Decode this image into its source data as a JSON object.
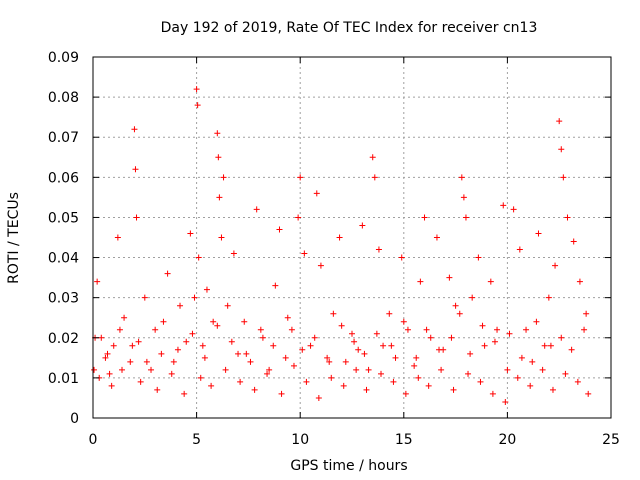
{
  "chart_data": {
    "type": "scatter",
    "title": "Day 192 of 2019, Rate Of TEC Index for receiver cn13",
    "xlabel": "GPS time / hours",
    "ylabel": "ROTI / TECUs",
    "xlim": [
      0,
      25
    ],
    "ylim": [
      0,
      0.09
    ],
    "xticks": [
      0,
      5,
      10,
      15,
      20,
      25
    ],
    "xtick_labels": [
      "0",
      "5",
      "10",
      "15",
      "20",
      "25"
    ],
    "yticks": [
      0,
      0.01,
      0.02,
      0.03,
      0.04,
      0.05,
      0.06,
      0.07,
      0.08,
      0.09
    ],
    "ytick_labels": [
      "0",
      "0.01",
      "0.02",
      "0.03",
      "0.04",
      "0.05",
      "0.06",
      "0.07",
      "0.08",
      "0.09"
    ],
    "grid": true,
    "marker": "+",
    "color": "#ff0000",
    "series": [
      {
        "x": [
          0.05,
          0.2,
          0.4,
          0.6,
          0.8,
          1.0,
          1.2,
          1.5,
          1.8,
          2.0,
          2.05,
          2.1,
          2.2,
          2.5,
          2.8,
          3.0,
          3.3,
          3.6,
          3.9,
          4.2,
          4.5,
          4.7,
          4.9,
          5.0,
          5.05,
          5.1,
          5.3,
          5.5,
          5.8,
          6.0,
          6.05,
          6.1,
          6.2,
          6.3,
          6.5,
          6.8,
          7.0,
          7.3,
          7.6,
          7.9,
          8.2,
          8.5,
          8.8,
          9.0,
          9.3,
          9.6,
          9.9,
          10.0,
          10.2,
          10.5,
          10.8,
          11.0,
          11.3,
          11.6,
          11.9,
          12.2,
          12.5,
          12.8,
          13.0,
          13.3,
          13.5,
          13.6,
          13.8,
          14.0,
          14.3,
          14.6,
          14.9,
          15.2,
          15.5,
          15.8,
          16.0,
          16.3,
          16.6,
          16.9,
          17.2,
          17.5,
          17.8,
          17.9,
          18.0,
          18.3,
          18.6,
          18.9,
          19.2,
          19.5,
          19.8,
          20.0,
          20.3,
          20.6,
          20.9,
          21.2,
          21.5,
          21.8,
          22.0,
          22.3,
          22.5,
          22.6,
          22.7,
          22.9,
          23.2,
          23.5,
          23.8,
          0.3,
          0.9,
          1.4,
          2.3,
          3.1,
          3.8,
          4.4,
          5.2,
          5.7,
          6.4,
          7.1,
          7.8,
          8.4,
          9.1,
          9.7,
          10.3,
          10.9,
          11.5,
          12.1,
          12.7,
          13.2,
          13.9,
          14.5,
          15.1,
          15.7,
          16.2,
          16.8,
          17.4,
          18.1,
          18.7,
          19.3,
          19.9,
          20.5,
          21.1,
          21.7,
          22.2,
          22.8,
          23.4,
          23.9,
          0.1,
          0.7,
          1.3,
          1.9,
          2.6,
          3.4,
          4.1,
          4.8,
          5.4,
          6.0,
          6.7,
          7.4,
          8.1,
          8.7,
          9.4,
          10.1,
          10.7,
          11.4,
          12.0,
          12.6,
          13.1,
          13.7,
          14.4,
          15.0,
          15.6,
          16.1,
          16.7,
          17.3,
          17.7,
          18.2,
          18.8,
          19.4,
          20.1,
          20.7,
          21.4,
          22.1,
          22.6,
          23.1,
          23.7
        ],
        "y": [
          0.012,
          0.034,
          0.02,
          0.015,
          0.011,
          0.018,
          0.045,
          0.025,
          0.014,
          0.072,
          0.062,
          0.05,
          0.019,
          0.03,
          0.012,
          0.022,
          0.016,
          0.036,
          0.014,
          0.028,
          0.019,
          0.046,
          0.03,
          0.082,
          0.078,
          0.04,
          0.018,
          0.032,
          0.024,
          0.071,
          0.065,
          0.055,
          0.045,
          0.06,
          0.028,
          0.041,
          0.016,
          0.024,
          0.014,
          0.052,
          0.02,
          0.012,
          0.033,
          0.047,
          0.015,
          0.022,
          0.05,
          0.06,
          0.041,
          0.018,
          0.056,
          0.038,
          0.015,
          0.026,
          0.045,
          0.014,
          0.021,
          0.017,
          0.048,
          0.012,
          0.065,
          0.06,
          0.042,
          0.018,
          0.026,
          0.015,
          0.04,
          0.022,
          0.013,
          0.034,
          0.05,
          0.02,
          0.045,
          0.017,
          0.035,
          0.028,
          0.06,
          0.055,
          0.05,
          0.03,
          0.04,
          0.018,
          0.034,
          0.022,
          0.053,
          0.012,
          0.052,
          0.042,
          0.022,
          0.014,
          0.046,
          0.018,
          0.03,
          0.038,
          0.074,
          0.067,
          0.06,
          0.05,
          0.044,
          0.034,
          0.026,
          0.01,
          0.008,
          0.012,
          0.009,
          0.007,
          0.011,
          0.006,
          0.01,
          0.008,
          0.012,
          0.009,
          0.007,
          0.011,
          0.006,
          0.013,
          0.009,
          0.005,
          0.01,
          0.008,
          0.012,
          0.007,
          0.011,
          0.009,
          0.006,
          0.01,
          0.008,
          0.012,
          0.007,
          0.011,
          0.009,
          0.006,
          0.004,
          0.01,
          0.008,
          0.012,
          0.007,
          0.011,
          0.009,
          0.006,
          0.02,
          0.016,
          0.022,
          0.018,
          0.014,
          0.024,
          0.017,
          0.021,
          0.015,
          0.023,
          0.019,
          0.016,
          0.022,
          0.018,
          0.025,
          0.017,
          0.02,
          0.014,
          0.023,
          0.019,
          0.016,
          0.021,
          0.018,
          0.024,
          0.015,
          0.022,
          0.017,
          0.02,
          0.026,
          0.016,
          0.023,
          0.019,
          0.021,
          0.015,
          0.024,
          0.018,
          0.02,
          0.017,
          0.022
        ]
      }
    ]
  }
}
